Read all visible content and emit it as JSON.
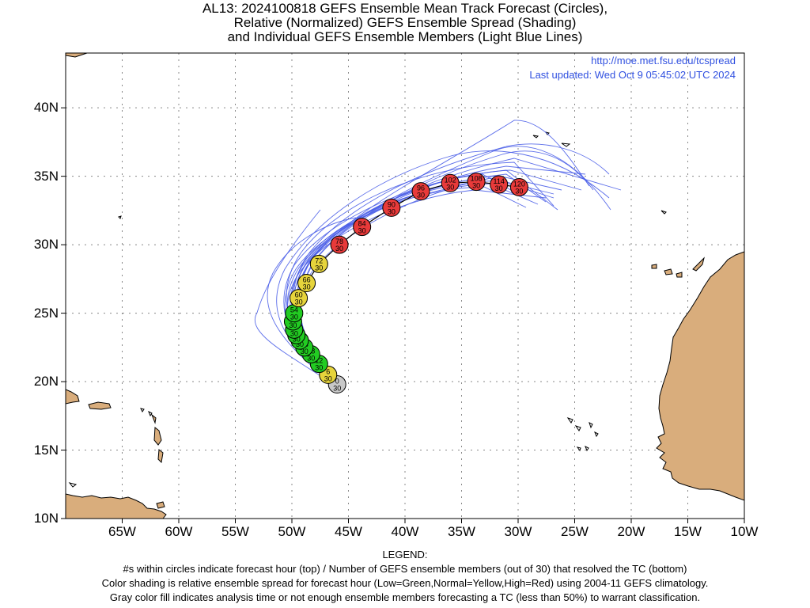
{
  "title": {
    "line1": "AL13: 2024100818 GEFS Ensemble Mean Track Forecast (Circles),",
    "line2": "Relative (Normalized) GEFS Ensemble Spread (Shading)",
    "line3": "and Individual GEFS Ensemble Members (Light Blue Lines)"
  },
  "info": {
    "url": "http://moe.met.fsu.edu/tcspread",
    "updated": "Last updated: Wed Oct 9 05:45:02 UTC 2024"
  },
  "axes": {
    "lat_labels": [
      "40N",
      "35N",
      "30N",
      "25N",
      "20N",
      "15N",
      "10N"
    ],
    "lon_labels": [
      "65W",
      "60W",
      "55W",
      "50W",
      "45W",
      "40W",
      "35W",
      "30W",
      "25W",
      "20W",
      "15W",
      "10W"
    ]
  },
  "legend": {
    "heading": "LEGEND:",
    "line1": "#s within circles indicate forecast hour (top) / Number of GEFS ensemble members (out of 30) that resolved the TC (bottom)",
    "line2": "Color shading is relative ensemble spread for forecast hour (Low=Green,Normal=Yellow,High=Red) using 2004-11 GEFS climatology.",
    "line3": "Gray color fill indicates analysis time or not enough ensemble members forecasting a TC (less than 50%) to warrant classification."
  },
  "colors": {
    "gray": "#c8c8c8",
    "green": "#22cc22",
    "yellow": "#e6d43c",
    "red": "#e83a3a",
    "member_line": "#4a5ee8",
    "mean_line": "#000000",
    "land": "#d9ad7c"
  },
  "map_data": {
    "extent": {
      "lon": [
        -70,
        -10
      ],
      "lat": [
        10,
        44
      ]
    },
    "track": [
      {
        "hour": "0",
        "members": "30",
        "lon": -46.0,
        "lat": 19.8,
        "spread": "gray"
      },
      {
        "hour": "6",
        "members": "30",
        "lon": -46.8,
        "lat": 20.5,
        "spread": "yellow"
      },
      {
        "hour": "12",
        "members": "30",
        "lon": -47.6,
        "lat": 21.3,
        "spread": "green"
      },
      {
        "hour": "18",
        "members": "30",
        "lon": -48.3,
        "lat": 22.0,
        "spread": "green"
      },
      {
        "hour": "24",
        "members": "30",
        "lon": -48.9,
        "lat": 22.5,
        "spread": "green"
      },
      {
        "hour": "30",
        "members": "30",
        "lon": -49.3,
        "lat": 23.0,
        "spread": "green"
      },
      {
        "hour": "36",
        "members": "30",
        "lon": -49.6,
        "lat": 23.4,
        "spread": "green"
      },
      {
        "hour": "42",
        "members": "30",
        "lon": -49.8,
        "lat": 23.8,
        "spread": "green"
      },
      {
        "hour": "48",
        "members": "30",
        "lon": -49.9,
        "lat": 24.4,
        "spread": "green"
      },
      {
        "hour": "54",
        "members": "30",
        "lon": -49.8,
        "lat": 25.0,
        "spread": "green"
      },
      {
        "hour": "60",
        "members": "30",
        "lon": -49.4,
        "lat": 26.1,
        "spread": "yellow"
      },
      {
        "hour": "66",
        "members": "30",
        "lon": -48.7,
        "lat": 27.2,
        "spread": "yellow"
      },
      {
        "hour": "72",
        "members": "30",
        "lon": -47.6,
        "lat": 28.6,
        "spread": "yellow"
      },
      {
        "hour": "78",
        "members": "30",
        "lon": -45.8,
        "lat": 30.0,
        "spread": "red"
      },
      {
        "hour": "84",
        "members": "30",
        "lon": -43.8,
        "lat": 31.3,
        "spread": "red"
      },
      {
        "hour": "90",
        "members": "30",
        "lon": -41.2,
        "lat": 32.7,
        "spread": "red"
      },
      {
        "hour": "96",
        "members": "30",
        "lon": -38.6,
        "lat": 33.9,
        "spread": "red"
      },
      {
        "hour": "102",
        "members": "30",
        "lon": -36.0,
        "lat": 34.5,
        "spread": "red"
      },
      {
        "hour": "108",
        "members": "30",
        "lon": -33.7,
        "lat": 34.6,
        "spread": "red"
      },
      {
        "hour": "114",
        "members": "30",
        "lon": -31.7,
        "lat": 34.4,
        "spread": "red"
      },
      {
        "hour": "120",
        "members": "30",
        "lon": -29.9,
        "lat": 34.2,
        "spread": "red"
      }
    ]
  }
}
